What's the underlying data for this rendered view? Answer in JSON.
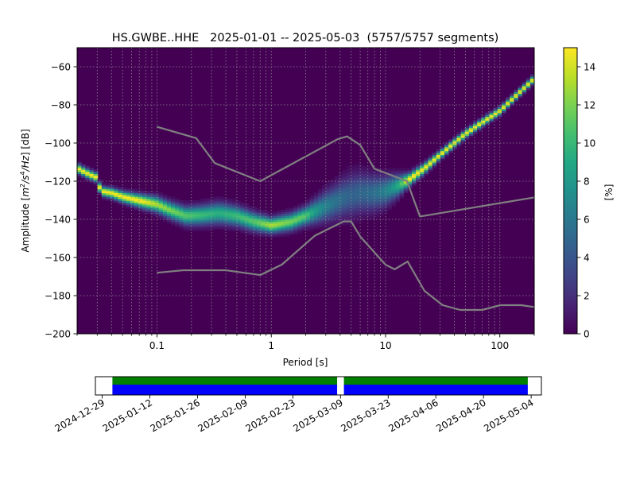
{
  "chart_data": {
    "type": "heatmap",
    "title": "HS.GWBE..HHE   2025-01-01 -- 2025-05-03  (5757/5757 segments)",
    "xlabel": "Period [s]",
    "ylabel_parts": {
      "prefix": "Amplitude [",
      "m": "m",
      "exp2": "2",
      "s": "/s",
      "exp4": "4",
      "hz": "/Hz",
      "suffix": "] [dB]"
    },
    "x_scale": "log",
    "xlim": [
      0.02,
      200
    ],
    "ylim": [
      -200,
      -50
    ],
    "x_ticks": [
      {
        "value": 0.1,
        "label": "0.1"
      },
      {
        "value": 1,
        "label": "1"
      },
      {
        "value": 10,
        "label": "10"
      },
      {
        "value": 100,
        "label": "100"
      }
    ],
    "y_ticks": [
      {
        "value": -60,
        "label": "−60"
      },
      {
        "value": -80,
        "label": "−80"
      },
      {
        "value": -100,
        "label": "−100"
      },
      {
        "value": -120,
        "label": "−120"
      },
      {
        "value": -140,
        "label": "−140"
      },
      {
        "value": -160,
        "label": "−160"
      },
      {
        "value": -180,
        "label": "−180"
      },
      {
        "value": -200,
        "label": "−200"
      }
    ],
    "grid": true,
    "colorbar": {
      "label": "[%]",
      "range": [
        0,
        15
      ],
      "ticks": [
        {
          "value": 0,
          "label": "0"
        },
        {
          "value": 2,
          "label": "2"
        },
        {
          "value": 4,
          "label": "4"
        },
        {
          "value": 6,
          "label": "6"
        },
        {
          "value": 8,
          "label": "8"
        },
        {
          "value": 10,
          "label": "10"
        },
        {
          "value": 12,
          "label": "12"
        },
        {
          "value": 14,
          "label": "14"
        }
      ]
    },
    "mode_curve": [
      [
        0.02,
        -113
      ],
      [
        0.025,
        -116
      ],
      [
        0.03,
        -118
      ],
      [
        0.032,
        -125
      ],
      [
        0.04,
        -126
      ],
      [
        0.05,
        -128
      ],
      [
        0.07,
        -130
      ],
      [
        0.1,
        -132
      ],
      [
        0.13,
        -135
      ],
      [
        0.18,
        -138
      ],
      [
        0.25,
        -137.5
      ],
      [
        0.35,
        -136.5
      ],
      [
        0.5,
        -138
      ],
      [
        0.7,
        -141
      ],
      [
        1,
        -143
      ],
      [
        1.5,
        -141
      ],
      [
        2,
        -138
      ],
      [
        3,
        -133
      ],
      [
        4.5,
        -128
      ],
      [
        6,
        -126
      ],
      [
        8,
        -126
      ],
      [
        10,
        -125
      ],
      [
        13,
        -122
      ],
      [
        16,
        -119
      ],
      [
        22,
        -113
      ],
      [
        30,
        -106
      ],
      [
        50,
        -95
      ],
      [
        70,
        -89
      ],
      [
        100,
        -83
      ],
      [
        150,
        -73
      ],
      [
        200,
        -66
      ]
    ],
    "spread_curve": [
      [
        0.02,
        1.5
      ],
      [
        0.03,
        1.5
      ],
      [
        0.05,
        1.8
      ],
      [
        0.1,
        2.5
      ],
      [
        0.18,
        3
      ],
      [
        0.35,
        3.5
      ],
      [
        0.7,
        3
      ],
      [
        1,
        2.5
      ],
      [
        2,
        3
      ],
      [
        3,
        5
      ],
      [
        5,
        7
      ],
      [
        8,
        6
      ],
      [
        12,
        4
      ],
      [
        16,
        2
      ],
      [
        30,
        1.4
      ],
      [
        200,
        1.2
      ]
    ],
    "noise_models": {
      "high": [
        [
          0.1,
          -91.5
        ],
        [
          0.22,
          -97.4
        ],
        [
          0.32,
          -110.5
        ],
        [
          0.8,
          -120
        ],
        [
          3.8,
          -98
        ],
        [
          4.6,
          -96.5
        ],
        [
          6,
          -101
        ],
        [
          8,
          -113.5
        ],
        [
          15.4,
          -120
        ],
        [
          20,
          -138.5
        ],
        [
          200,
          -128.5
        ]
      ],
      "low": [
        [
          0.1,
          -168
        ],
        [
          0.17,
          -166.7
        ],
        [
          0.4,
          -166.7
        ],
        [
          0.8,
          -169.2
        ],
        [
          1.24,
          -163.7
        ],
        [
          2.4,
          -148.6
        ],
        [
          4.3,
          -141.1
        ],
        [
          5,
          -141.1
        ],
        [
          6,
          -149
        ],
        [
          10,
          -163.8
        ],
        [
          12,
          -166.2
        ],
        [
          15.6,
          -162.1
        ],
        [
          21.9,
          -177.5
        ],
        [
          31.6,
          -185
        ],
        [
          45,
          -187.5
        ],
        [
          70,
          -187.5
        ],
        [
          101,
          -185
        ],
        [
          154,
          -185
        ],
        [
          200,
          -186
        ]
      ]
    },
    "timeline": {
      "tick_labels": [
        "2024-12-29",
        "2025-01-12",
        "2025-01-26",
        "2025-02-09",
        "2025-02-23",
        "2025-03-09",
        "2025-03-23",
        "2025-04-06",
        "2025-04-20",
        "2025-05-04"
      ],
      "range": [
        "2024-12-27",
        "2025-05-07"
      ],
      "coverage": [
        [
          "2025-01-01",
          "2025-03-08"
        ],
        [
          "2025-03-10",
          "2025-05-03"
        ]
      ],
      "colors": {
        "top": "#008000",
        "bottom": "#0000ff"
      }
    }
  }
}
